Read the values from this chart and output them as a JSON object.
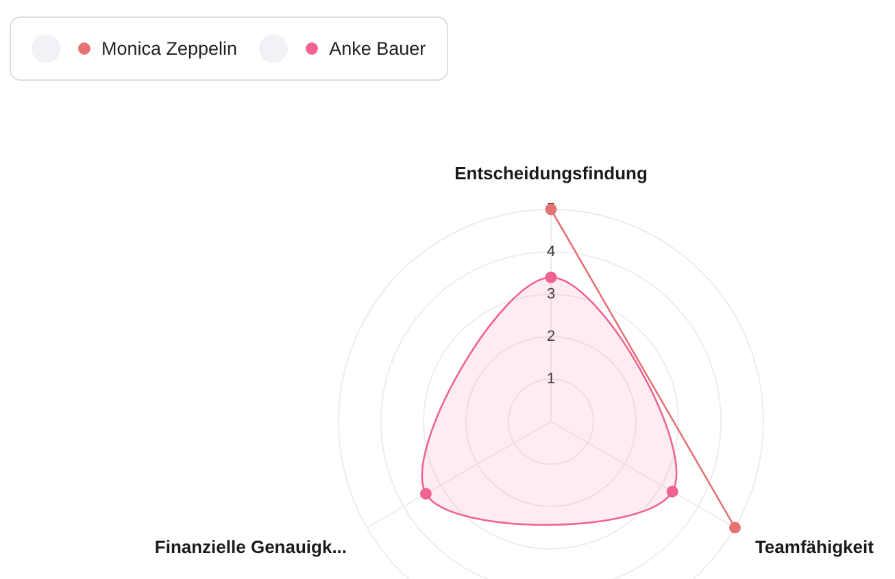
{
  "chart_data": {
    "type": "radar",
    "categories": [
      "Entscheidungsfindung",
      "Teamfähigkeit",
      "Finanzielle Genauigk..."
    ],
    "series": [
      {
        "name": "Monica Zeppelin",
        "color": "#e57373",
        "values": [
          5,
          5,
          null
        ]
      },
      {
        "name": "Anke Bauer",
        "color": "#f06292",
        "values": [
          3.4,
          3.3,
          3.4
        ]
      }
    ],
    "ylim": [
      0,
      5
    ],
    "yticks": [
      1,
      2,
      3,
      4,
      5
    ],
    "grid": true,
    "legend": "top left",
    "marker": "circle",
    "line_style": "solid"
  }
}
